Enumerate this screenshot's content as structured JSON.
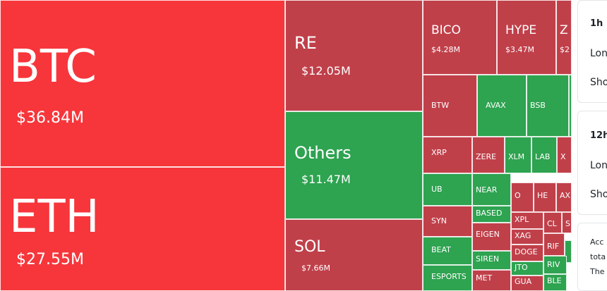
{
  "colors": {
    "up": "#2ea350",
    "down": "#c0404a",
    "strong_down": "#f6363b"
  },
  "treemap": {
    "tiles": [
      {
        "symbol": "BTC",
        "value": "$36.84M",
        "trend": "strong_down"
      },
      {
        "symbol": "ETH",
        "value": "$27.55M",
        "trend": "strong_down"
      },
      {
        "symbol": "RE",
        "value": "$12.05M",
        "trend": "down"
      },
      {
        "symbol": "Others",
        "value": "$11.47M",
        "trend": "up"
      },
      {
        "symbol": "SOL",
        "value": "$7.66M",
        "trend": "down"
      },
      {
        "symbol": "BICO",
        "value": "$4.28M",
        "trend": "down"
      },
      {
        "symbol": "HYPE",
        "value": "$3.47M",
        "trend": "down"
      },
      {
        "symbol": "Z",
        "value": "$2",
        "trend": "down"
      },
      {
        "symbol": "BTW",
        "value": "",
        "trend": "down"
      },
      {
        "symbol": "AVAX",
        "value": "",
        "trend": "up"
      },
      {
        "symbol": "BSB",
        "value": "",
        "trend": "up"
      },
      {
        "symbol": "",
        "value": "",
        "trend": "up"
      },
      {
        "symbol": "XRP",
        "value": "",
        "trend": "down"
      },
      {
        "symbol": "ZERE",
        "value": "",
        "trend": "down"
      },
      {
        "symbol": "XLM",
        "value": "",
        "trend": "up"
      },
      {
        "symbol": "LAB",
        "value": "",
        "trend": "up"
      },
      {
        "symbol": "X",
        "value": "",
        "trend": "down"
      },
      {
        "symbol": "UB",
        "value": "",
        "trend": "up"
      },
      {
        "symbol": "NEAR",
        "value": "",
        "trend": "up"
      },
      {
        "symbol": "O",
        "value": "",
        "trend": "down"
      },
      {
        "symbol": "HE",
        "value": "",
        "trend": "down"
      },
      {
        "symbol": "AX",
        "value": "",
        "trend": "down"
      },
      {
        "symbol": "SYN",
        "value": "",
        "trend": "down"
      },
      {
        "symbol": "BASED",
        "value": "",
        "trend": "up"
      },
      {
        "symbol": "XPL",
        "value": "",
        "trend": "down"
      },
      {
        "symbol": "CL",
        "value": "",
        "trend": "down"
      },
      {
        "symbol": "S",
        "value": "",
        "trend": "down"
      },
      {
        "symbol": "EIGEN",
        "value": "",
        "trend": "down"
      },
      {
        "symbol": "XAG",
        "value": "",
        "trend": "down"
      },
      {
        "symbol": "BEAT",
        "value": "",
        "trend": "up"
      },
      {
        "symbol": "SIREN",
        "value": "",
        "trend": "up"
      },
      {
        "symbol": "DOGE",
        "value": "",
        "trend": "down"
      },
      {
        "symbol": "RIF",
        "value": "",
        "trend": "down"
      },
      {
        "symbol": "",
        "value": "",
        "trend": "up"
      },
      {
        "symbol": "ESPORTS",
        "value": "",
        "trend": "up"
      },
      {
        "symbol": "MET",
        "value": "",
        "trend": "down"
      },
      {
        "symbol": "JTO",
        "value": "",
        "trend": "up"
      },
      {
        "symbol": "RIV",
        "value": "",
        "trend": "up"
      },
      {
        "symbol": "GUA",
        "value": "",
        "trend": "down"
      },
      {
        "symbol": "BLE",
        "value": "",
        "trend": "up"
      }
    ]
  },
  "side_panel": {
    "card_1h": {
      "header": "1h",
      "long_label": "Lon",
      "short_label": "Sho"
    },
    "card_12h": {
      "header": "12h",
      "long_label": "Lon",
      "short_label": "Sho"
    },
    "note_lines": [
      "Acc",
      "tota",
      "The"
    ]
  }
}
